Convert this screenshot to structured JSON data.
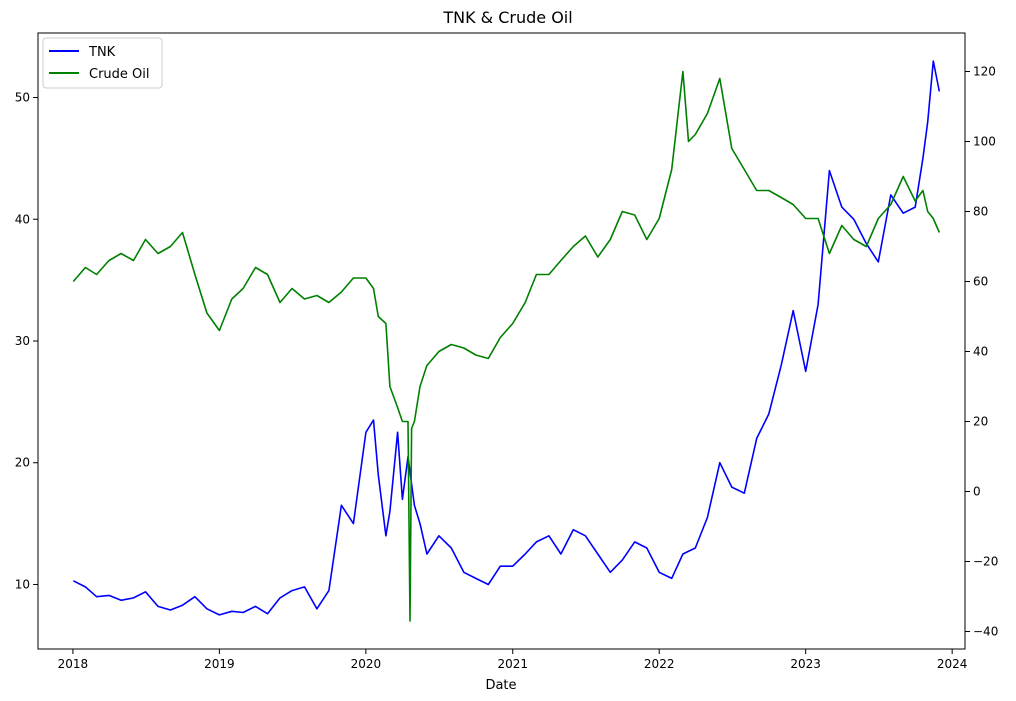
{
  "chart_data": {
    "type": "line",
    "title": "TNK & Crude Oil",
    "xlabel": "Date",
    "ylabel": "",
    "ylabel_right": "",
    "x_ticks": [
      "2018",
      "2019",
      "2020",
      "2021",
      "2022",
      "2023",
      "2024"
    ],
    "x_range": [
      "2017-10-06",
      "2024-02-02"
    ],
    "ylim": [
      4.7,
      55.3
    ],
    "ylim_right": [
      -45,
      131
    ],
    "y_ticks": [
      10,
      20,
      30,
      40,
      50
    ],
    "y_ticks_right": [
      -40,
      -20,
      0,
      20,
      40,
      60,
      80,
      100,
      120
    ],
    "grid": false,
    "legend_position": "top-left",
    "colors": {
      "TNK": "#0000ff",
      "Crude Oil": "#008000"
    },
    "series": [
      {
        "name": "TNK",
        "axis": "left",
        "color": "#0000ff",
        "x": [
          "2018-01-02",
          "2018-02-01",
          "2018-03-01",
          "2018-04-01",
          "2018-05-01",
          "2018-06-01",
          "2018-07-01",
          "2018-08-01",
          "2018-09-01",
          "2018-10-01",
          "2018-11-01",
          "2018-12-01",
          "2019-01-01",
          "2019-02-01",
          "2019-03-01",
          "2019-04-01",
          "2019-05-01",
          "2019-06-01",
          "2019-07-01",
          "2019-08-01",
          "2019-09-01",
          "2019-10-01",
          "2019-11-01",
          "2019-12-01",
          "2020-01-01",
          "2020-01-20",
          "2020-02-01",
          "2020-02-20",
          "2020-03-01",
          "2020-03-20",
          "2020-04-01",
          "2020-04-15",
          "2020-05-01",
          "2020-05-15",
          "2020-06-01",
          "2020-07-01",
          "2020-08-01",
          "2020-09-01",
          "2020-10-01",
          "2020-11-01",
          "2020-12-01",
          "2021-01-01",
          "2021-02-01",
          "2021-03-01",
          "2021-04-01",
          "2021-05-01",
          "2021-06-01",
          "2021-07-01",
          "2021-08-01",
          "2021-09-01",
          "2021-10-01",
          "2021-11-01",
          "2021-12-01",
          "2022-01-01",
          "2022-02-01",
          "2022-03-01",
          "2022-04-01",
          "2022-05-01",
          "2022-06-01",
          "2022-07-01",
          "2022-08-01",
          "2022-09-01",
          "2022-10-01",
          "2022-11-01",
          "2022-12-01",
          "2023-01-01",
          "2023-02-01",
          "2023-03-01",
          "2023-04-01",
          "2023-05-01",
          "2023-06-01",
          "2023-07-01",
          "2023-08-01",
          "2023-09-01",
          "2023-10-01",
          "2023-10-20",
          "2023-11-01",
          "2023-11-15",
          "2023-11-30"
        ],
        "y": [
          10.3,
          9.8,
          9.0,
          9.1,
          8.7,
          8.9,
          9.4,
          8.2,
          7.9,
          8.3,
          9.0,
          8.0,
          7.5,
          7.8,
          7.7,
          8.2,
          7.6,
          8.9,
          9.5,
          9.8,
          8.0,
          9.5,
          16.5,
          15.0,
          22.5,
          23.5,
          19.0,
          14.0,
          16.0,
          22.5,
          17.0,
          20.5,
          16.5,
          15.0,
          12.5,
          14.0,
          13.0,
          11.0,
          10.5,
          10.0,
          11.5,
          11.5,
          12.5,
          13.5,
          14.0,
          12.5,
          14.5,
          14.0,
          12.5,
          11.0,
          12.0,
          13.5,
          13.0,
          11.0,
          10.5,
          12.5,
          13.0,
          15.5,
          20.0,
          18.0,
          17.5,
          22.0,
          24.0,
          28.0,
          32.5,
          27.5,
          33.0,
          44.0,
          41.0,
          40.0,
          38.0,
          36.5,
          42.0,
          40.5,
          41.0,
          45.0,
          48.0,
          53.0,
          50.5
        ]
      },
      {
        "name": "Crude Oil",
        "axis": "right",
        "color": "#008000",
        "x": [
          "2018-01-02",
          "2018-02-01",
          "2018-03-01",
          "2018-04-01",
          "2018-05-01",
          "2018-06-01",
          "2018-07-01",
          "2018-08-01",
          "2018-09-01",
          "2018-10-01",
          "2018-11-01",
          "2018-12-01",
          "2019-01-01",
          "2019-02-01",
          "2019-03-01",
          "2019-04-01",
          "2019-05-01",
          "2019-06-01",
          "2019-07-01",
          "2019-08-01",
          "2019-09-01",
          "2019-10-01",
          "2019-11-01",
          "2019-12-01",
          "2020-01-01",
          "2020-01-20",
          "2020-02-01",
          "2020-02-20",
          "2020-03-01",
          "2020-03-20",
          "2020-04-01",
          "2020-04-15",
          "2020-04-20",
          "2020-04-24",
          "2020-05-01",
          "2020-05-15",
          "2020-06-01",
          "2020-07-01",
          "2020-08-01",
          "2020-09-01",
          "2020-10-01",
          "2020-11-01",
          "2020-12-01",
          "2021-01-01",
          "2021-02-01",
          "2021-03-01",
          "2021-04-01",
          "2021-05-01",
          "2021-06-01",
          "2021-07-01",
          "2021-08-01",
          "2021-09-01",
          "2021-10-01",
          "2021-11-01",
          "2021-12-01",
          "2022-01-01",
          "2022-02-01",
          "2022-03-01",
          "2022-03-15",
          "2022-04-01",
          "2022-05-01",
          "2022-06-01",
          "2022-07-01",
          "2022-08-01",
          "2022-09-01",
          "2022-10-01",
          "2022-11-01",
          "2022-12-01",
          "2023-01-01",
          "2023-02-01",
          "2023-03-01",
          "2023-04-01",
          "2023-05-01",
          "2023-06-01",
          "2023-07-01",
          "2023-08-01",
          "2023-09-01",
          "2023-10-01",
          "2023-10-20",
          "2023-11-01",
          "2023-11-15",
          "2023-11-30"
        ],
        "y": [
          60,
          64,
          62,
          66,
          68,
          66,
          72,
          68,
          70,
          74,
          62,
          51,
          46,
          55,
          58,
          64,
          62,
          54,
          58,
          55,
          56,
          54,
          57,
          61,
          61,
          58,
          50,
          48,
          30,
          24,
          20,
          20,
          -37,
          18,
          20,
          30,
          36,
          40,
          42,
          41,
          39,
          38,
          44,
          48,
          54,
          62,
          62,
          66,
          70,
          73,
          67,
          72,
          80,
          79,
          72,
          78,
          92,
          120,
          100,
          102,
          108,
          118,
          98,
          92,
          86,
          86,
          84,
          82,
          78,
          78,
          68,
          76,
          72,
          70,
          78,
          82,
          90,
          83,
          86,
          80,
          78,
          74
        ]
      }
    ]
  }
}
